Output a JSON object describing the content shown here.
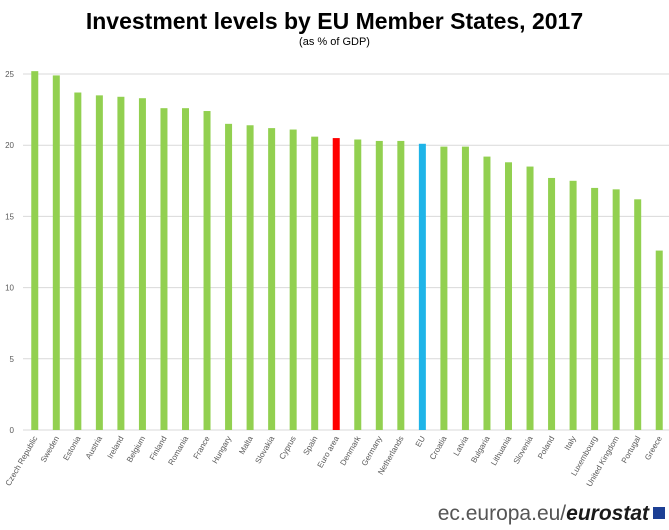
{
  "title": "Investment levels by EU Member States, 2017",
  "subtitle": "(as % of GDP)",
  "footer": {
    "source_prefix": "ec.europa.eu/",
    "source_brand": "eurostat"
  },
  "colors": {
    "default": "#92d050",
    "euro_area": "#ff0000",
    "eu": "#1eb4e8",
    "grid": "#d9d9d9",
    "axis_text": "#595959"
  },
  "chart_data": {
    "type": "bar",
    "title": "Investment levels by EU Member States, 2017",
    "subtitle": "(as % of GDP)",
    "xlabel": "",
    "ylabel": "",
    "ylim": [
      0,
      25
    ],
    "yticks": [
      0,
      5,
      10,
      15,
      20,
      25
    ],
    "grid": true,
    "categories": [
      "Czech Republic",
      "Sweden",
      "Estonia",
      "Austria",
      "Ireland",
      "Belgium",
      "Finland",
      "Romania",
      "France",
      "Hungary",
      "Malta",
      "Slovakia",
      "Cyprus",
      "Spain",
      "Euro area",
      "Denmark",
      "Germany",
      "Netherlands",
      "EU",
      "Croatia",
      "Latvia",
      "Bulgaria",
      "Lithuania",
      "Slovenia",
      "Poland",
      "Italy",
      "Luxembourg",
      "United Kingdom",
      "Portugal",
      "Greece"
    ],
    "values": [
      25.2,
      24.9,
      23.7,
      23.5,
      23.4,
      23.3,
      22.6,
      22.6,
      22.4,
      21.5,
      21.4,
      21.2,
      21.1,
      20.6,
      20.5,
      20.4,
      20.3,
      20.3,
      20.1,
      19.9,
      19.9,
      19.2,
      18.8,
      18.5,
      17.7,
      17.5,
      17.0,
      16.9,
      16.2,
      12.6
    ],
    "highlight": {
      "Euro area": "euro_area",
      "EU": "eu"
    }
  }
}
